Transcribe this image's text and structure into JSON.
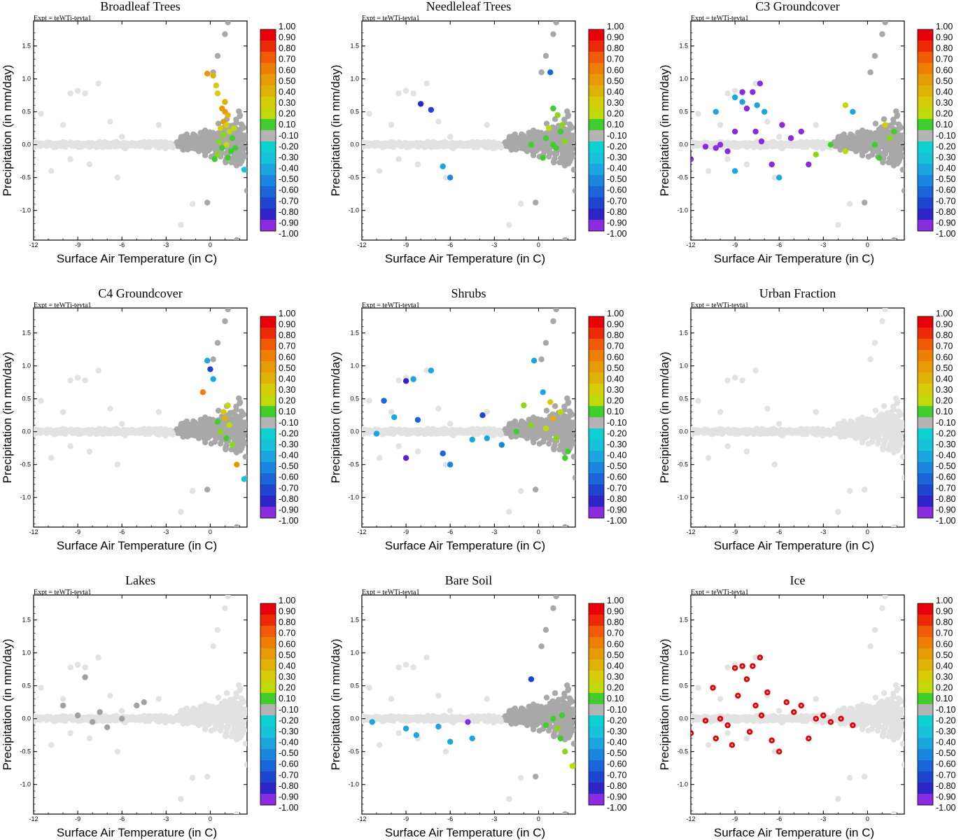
{
  "figure": {
    "expt_label": "Expt = teWTi-tevta1",
    "x_axis_label": "Surface Air Temperature (in C)",
    "y_axis_label": "Precipitation (in mm/day)",
    "x_ticks": [
      "-12",
      "-9",
      "-6",
      "-3",
      "0"
    ],
    "y_ticks": [
      "1.5",
      "1.0",
      "0.5",
      "0.0",
      "-0.5",
      "-1.0"
    ],
    "colorbar_labels": [
      "1.00",
      "0.90",
      "0.80",
      "0.70",
      "0.60",
      "0.50",
      "0.40",
      "0.30",
      "0.20",
      "0.10",
      "-0.10",
      "-0.20",
      "-0.30",
      "-0.40",
      "-0.50",
      "-0.60",
      "-0.70",
      "-0.80",
      "-0.90",
      "-1.00"
    ],
    "colorbar_colors": [
      "#e8000b",
      "#ec2a08",
      "#f05a05",
      "#ef7e04",
      "#e59a06",
      "#e0b208",
      "#d6cc08",
      "#bfd90a",
      "#88d81a",
      "#3fce2d",
      "#b4b4b4",
      "#0fd0d0",
      "#18c2da",
      "#1ba6e0",
      "#1987e0",
      "#1a66d8",
      "#1d45d0",
      "#2d25c8",
      "#5e1fd0",
      "#8a2be0"
    ]
  },
  "chart_data": [
    {
      "type": "scatter",
      "title": "Broadleaf Trees",
      "xlabel": "Surface Air Temperature (in C)",
      "ylabel": "Precipitation (in mm/day)",
      "xlim": [
        -12,
        2.5
      ],
      "ylim": [
        -1.45,
        1.88
      ],
      "highlight": [
        {
          "x": -0.2,
          "y": 1.08,
          "v": 0.6
        },
        {
          "x": 0.2,
          "y": 1.05,
          "v": 0.5
        },
        {
          "x": 0.4,
          "y": 0.9,
          "v": 0.45
        },
        {
          "x": 0.5,
          "y": 0.78,
          "v": 0.4
        },
        {
          "x": 0.8,
          "y": 0.55,
          "v": 0.6
        },
        {
          "x": 1.0,
          "y": 0.5,
          "v": 0.55
        },
        {
          "x": 1.2,
          "y": 0.45,
          "v": 0.5
        },
        {
          "x": 0.9,
          "y": 0.35,
          "v": 0.6
        },
        {
          "x": 1.1,
          "y": 0.3,
          "v": 0.45
        },
        {
          "x": 0.7,
          "y": 0.25,
          "v": 0.4
        },
        {
          "x": 1.3,
          "y": 0.2,
          "v": 0.3
        },
        {
          "x": 0.9,
          "y": 0.15,
          "v": 0.2
        },
        {
          "x": 1.5,
          "y": 0.1,
          "v": 0.15
        },
        {
          "x": 0.6,
          "y": 0.05,
          "v": 0.25
        },
        {
          "x": 1.1,
          "y": 0.0,
          "v": 0.3
        },
        {
          "x": 0.8,
          "y": -0.05,
          "v": 0.15
        },
        {
          "x": 1.4,
          "y": -0.1,
          "v": 0.1
        },
        {
          "x": 0.5,
          "y": -0.15,
          "v": 0.2
        },
        {
          "x": 1.2,
          "y": -0.2,
          "v": 0.1
        },
        {
          "x": 0.3,
          "y": -0.22,
          "v": 0.15
        },
        {
          "x": 1.6,
          "y": 0.25,
          "v": 0.35
        },
        {
          "x": 1.0,
          "y": 0.65,
          "v": 0.5
        },
        {
          "x": 1.7,
          "y": -0.05,
          "v": 0.12
        },
        {
          "x": 2.3,
          "y": -0.38,
          "v": -0.2
        }
      ]
    },
    {
      "type": "scatter",
      "title": "Needleleaf Trees",
      "xlabel": "Surface Air Temperature (in C)",
      "ylabel": "Precipitation (in mm/day)",
      "xlim": [
        -12,
        2.5
      ],
      "ylim": [
        -1.45,
        1.88
      ],
      "highlight": [
        {
          "x": -8.0,
          "y": 0.62,
          "v": -0.7
        },
        {
          "x": -7.3,
          "y": 0.53,
          "v": -0.6
        },
        {
          "x": -6.5,
          "y": -0.33,
          "v": -0.3
        },
        {
          "x": -6.0,
          "y": -0.5,
          "v": -0.4
        },
        {
          "x": 0.8,
          "y": 1.1,
          "v": -0.5
        },
        {
          "x": 1.0,
          "y": 0.55,
          "v": 0.15
        },
        {
          "x": 1.3,
          "y": 0.45,
          "v": 0.2
        },
        {
          "x": 1.5,
          "y": 0.2,
          "v": 0.15
        },
        {
          "x": 0.5,
          "y": 0.1,
          "v": 0.12
        },
        {
          "x": 1.8,
          "y": 0.05,
          "v": 0.2
        },
        {
          "x": 1.0,
          "y": 0.0,
          "v": 0.15
        },
        {
          "x": 1.2,
          "y": -0.05,
          "v": 0.12
        },
        {
          "x": 0.3,
          "y": -0.2,
          "v": 0.15
        },
        {
          "x": 1.6,
          "y": 0.3,
          "v": 0.2
        },
        {
          "x": -0.5,
          "y": 0.0,
          "v": 0.12
        },
        {
          "x": 0.7,
          "y": 0.25,
          "v": 0.3
        }
      ]
    },
    {
      "type": "scatter",
      "title": "C3 Groundcover",
      "xlabel": "Surface Air Temperature (in C)",
      "ylabel": "Precipitation (in mm/day)",
      "xlim": [
        -12,
        2.5
      ],
      "ylim": [
        -1.45,
        1.88
      ],
      "highlight": [
        {
          "x": -12,
          "y": -0.22,
          "v": -0.9
        },
        {
          "x": -11.0,
          "y": -0.03,
          "v": -0.9
        },
        {
          "x": -10.3,
          "y": -0.05,
          "v": -0.9
        },
        {
          "x": -10.0,
          "y": 0.0,
          "v": -0.9
        },
        {
          "x": -9.5,
          "y": -0.1,
          "v": -0.9
        },
        {
          "x": -9.0,
          "y": 0.2,
          "v": -0.9
        },
        {
          "x": -8.5,
          "y": 0.8,
          "v": -0.9
        },
        {
          "x": -7.8,
          "y": 0.8,
          "v": -0.9
        },
        {
          "x": -7.3,
          "y": 0.93,
          "v": -0.9
        },
        {
          "x": -8.2,
          "y": 0.55,
          "v": -0.9
        },
        {
          "x": -7.6,
          "y": 0.2,
          "v": -0.9
        },
        {
          "x": -7.2,
          "y": 0.05,
          "v": -0.9
        },
        {
          "x": -6.5,
          "y": -0.3,
          "v": -0.9
        },
        {
          "x": -5.8,
          "y": 0.3,
          "v": -0.9
        },
        {
          "x": -5.2,
          "y": 0.1,
          "v": -0.9
        },
        {
          "x": -4.5,
          "y": 0.2,
          "v": -0.9
        },
        {
          "x": -4.0,
          "y": -0.3,
          "v": -0.9
        },
        {
          "x": -10.3,
          "y": 0.5,
          "v": -0.3
        },
        {
          "x": -9.0,
          "y": 0.72,
          "v": -0.3
        },
        {
          "x": -8.5,
          "y": 0.65,
          "v": -0.3
        },
        {
          "x": -7.5,
          "y": 0.6,
          "v": -0.3
        },
        {
          "x": -7.0,
          "y": 0.5,
          "v": -0.3
        },
        {
          "x": -9.0,
          "y": -0.4,
          "v": -0.3
        },
        {
          "x": -6.0,
          "y": -0.5,
          "v": -0.3
        },
        {
          "x": -1.5,
          "y": 0.6,
          "v": 0.3
        },
        {
          "x": -3.5,
          "y": -0.15,
          "v": 0.2
        },
        {
          "x": -2.5,
          "y": 0.0,
          "v": 0.15
        },
        {
          "x": -1.5,
          "y": -0.1,
          "v": 0.3
        },
        {
          "x": 0.5,
          "y": 0.0,
          "v": 0.15
        },
        {
          "x": 0.8,
          "y": -0.2,
          "v": 0.1
        },
        {
          "x": 1.2,
          "y": 0.3,
          "v": 0.4
        },
        {
          "x": 1.5,
          "y": 0.1,
          "v": 0.2
        },
        {
          "x": 1.8,
          "y": 0.2,
          "v": 0.15
        },
        {
          "x": -1.0,
          "y": 0.5,
          "v": -0.25
        }
      ]
    },
    {
      "type": "scatter",
      "title": "C4 Groundcover",
      "xlabel": "Surface Air Temperature (in C)",
      "ylabel": "Precipitation (in mm/day)",
      "xlim": [
        -12,
        2.5
      ],
      "ylim": [
        -1.45,
        1.88
      ],
      "highlight": [
        {
          "x": -0.2,
          "y": 1.08,
          "v": -0.3
        },
        {
          "x": 0.0,
          "y": 0.95,
          "v": -0.6
        },
        {
          "x": 0.2,
          "y": 0.8,
          "v": -0.3
        },
        {
          "x": -0.5,
          "y": 0.6,
          "v": 0.7
        },
        {
          "x": 0.9,
          "y": 0.3,
          "v": 0.4
        },
        {
          "x": 1.0,
          "y": 0.2,
          "v": 0.5
        },
        {
          "x": 1.3,
          "y": 0.1,
          "v": 0.3
        },
        {
          "x": 0.7,
          "y": 0.0,
          "v": 0.2
        },
        {
          "x": 1.1,
          "y": -0.1,
          "v": 0.15
        },
        {
          "x": 1.5,
          "y": -0.2,
          "v": 0.2
        },
        {
          "x": 0.5,
          "y": 0.15,
          "v": 0.12
        },
        {
          "x": 1.8,
          "y": -0.5,
          "v": 0.6
        },
        {
          "x": 2.3,
          "y": -0.72,
          "v": -0.2
        },
        {
          "x": 1.2,
          "y": 0.4,
          "v": 0.3
        }
      ]
    },
    {
      "type": "scatter",
      "title": "Shrubs",
      "xlabel": "Surface Air Temperature (in C)",
      "ylabel": "Precipitation (in mm/day)",
      "xlim": [
        -12,
        2.5
      ],
      "ylim": [
        -1.45,
        1.88
      ],
      "highlight": [
        {
          "x": -10.5,
          "y": 0.47,
          "v": -0.5
        },
        {
          "x": -9.0,
          "y": 0.77,
          "v": -0.7
        },
        {
          "x": -8.5,
          "y": 0.8,
          "v": -0.3
        },
        {
          "x": -7.3,
          "y": 0.93,
          "v": -0.3
        },
        {
          "x": -8.2,
          "y": 0.18,
          "v": -0.5
        },
        {
          "x": -9.0,
          "y": -0.4,
          "v": -0.8
        },
        {
          "x": -6.5,
          "y": -0.33,
          "v": -0.5
        },
        {
          "x": -6.0,
          "y": -0.5,
          "v": -0.4
        },
        {
          "x": -3.8,
          "y": 0.25,
          "v": -0.6
        },
        {
          "x": -4.5,
          "y": -0.12,
          "v": -0.3
        },
        {
          "x": -3.5,
          "y": -0.1,
          "v": -0.3
        },
        {
          "x": -2.5,
          "y": -0.2,
          "v": -0.4
        },
        {
          "x": -1.5,
          "y": 0.0,
          "v": 0.15
        },
        {
          "x": -0.5,
          "y": 0.1,
          "v": 0.2
        },
        {
          "x": 0.5,
          "y": 0.05,
          "v": 0.3
        },
        {
          "x": 1.0,
          "y": 0.2,
          "v": 0.5
        },
        {
          "x": 0.8,
          "y": 0.45,
          "v": 0.4
        },
        {
          "x": 1.2,
          "y": -0.1,
          "v": 0.2
        },
        {
          "x": 1.5,
          "y": 0.3,
          "v": 0.3
        },
        {
          "x": -1.0,
          "y": 0.4,
          "v": 0.25
        },
        {
          "x": 0.3,
          "y": 0.6,
          "v": -0.3
        },
        {
          "x": -0.3,
          "y": 1.08,
          "v": -0.3
        },
        {
          "x": 1.8,
          "y": -0.4,
          "v": 0.15
        },
        {
          "x": 2.0,
          "y": -0.3,
          "v": 0.12
        },
        {
          "x": -9.8,
          "y": 0.22,
          "v": -0.3
        },
        {
          "x": -11,
          "y": -0.03,
          "v": -0.3
        }
      ]
    },
    {
      "type": "scatter",
      "title": "Urban Fraction",
      "xlabel": "Surface Air Temperature (in C)",
      "ylabel": "Precipitation (in mm/day)",
      "xlim": [
        -12,
        2.5
      ],
      "ylim": [
        -1.45,
        1.88
      ],
      "highlight": []
    },
    {
      "type": "scatter",
      "title": "Lakes",
      "xlabel": "Surface Air Temperature (in C)",
      "ylabel": "Precipitation (in mm/day)",
      "xlim": [
        -12,
        2.5
      ],
      "ylim": [
        -1.45,
        1.88
      ],
      "highlight": [
        {
          "x": -10,
          "y": 0.2,
          "v": 0.0
        },
        {
          "x": -8.5,
          "y": 0.63,
          "v": 0.0
        },
        {
          "x": -7.5,
          "y": 0.1,
          "v": 0.0
        },
        {
          "x": -7.0,
          "y": -0.13,
          "v": 0.0
        },
        {
          "x": -6.0,
          "y": 0.0,
          "v": 0.0
        },
        {
          "x": -4.5,
          "y": 0.25,
          "v": 0.0
        },
        {
          "x": -8.0,
          "y": -0.05,
          "v": 0.0
        },
        {
          "x": -9.0,
          "y": 0.05,
          "v": 0.0
        },
        {
          "x": -5.0,
          "y": 0.2,
          "v": 0.0
        }
      ]
    },
    {
      "type": "scatter",
      "title": "Bare Soil",
      "xlabel": "Surface Air Temperature (in C)",
      "ylabel": "Precipitation (in mm/day)",
      "xlim": [
        -12,
        2.5
      ],
      "ylim": [
        -1.45,
        1.88
      ],
      "highlight": [
        {
          "x": -11.3,
          "y": -0.05,
          "v": -0.3
        },
        {
          "x": -9.0,
          "y": -0.15,
          "v": -0.3
        },
        {
          "x": -8.3,
          "y": -0.25,
          "v": -0.3
        },
        {
          "x": -6.8,
          "y": -0.12,
          "v": -0.3
        },
        {
          "x": -6.0,
          "y": -0.35,
          "v": -0.3
        },
        {
          "x": -4.8,
          "y": -0.05,
          "v": -0.9
        },
        {
          "x": -4.5,
          "y": -0.3,
          "v": -0.3
        },
        {
          "x": -0.5,
          "y": 0.6,
          "v": -0.6
        },
        {
          "x": 1.0,
          "y": 0.0,
          "v": 0.15
        },
        {
          "x": 1.3,
          "y": -0.15,
          "v": 0.2
        },
        {
          "x": 1.5,
          "y": -0.3,
          "v": 0.15
        },
        {
          "x": 1.8,
          "y": -0.5,
          "v": 0.2
        },
        {
          "x": 2.3,
          "y": -0.72,
          "v": 0.3
        },
        {
          "x": 0.5,
          "y": -0.1,
          "v": 0.12
        },
        {
          "x": 1.6,
          "y": 0.05,
          "v": 0.15
        }
      ]
    },
    {
      "type": "scatter",
      "title": "Ice",
      "xlabel": "Surface Air Temperature (in C)",
      "ylabel": "Precipitation (in mm/day)",
      "xlim": [
        -12,
        2.5
      ],
      "ylim": [
        -1.45,
        1.88
      ],
      "highlight": [
        {
          "x": -12,
          "y": -0.22,
          "v": 1.0
        },
        {
          "x": -11.0,
          "y": -0.03,
          "v": 1.0
        },
        {
          "x": -10.5,
          "y": 0.47,
          "v": 1.0
        },
        {
          "x": -10.3,
          "y": -0.3,
          "v": 1.0
        },
        {
          "x": -10.0,
          "y": 0.0,
          "v": 1.0
        },
        {
          "x": -9.5,
          "y": -0.1,
          "v": 1.0
        },
        {
          "x": -9.0,
          "y": 0.77,
          "v": 1.0
        },
        {
          "x": -8.5,
          "y": 0.8,
          "v": 1.0
        },
        {
          "x": -8.2,
          "y": 0.6,
          "v": 1.0
        },
        {
          "x": -7.8,
          "y": 0.8,
          "v": 1.0
        },
        {
          "x": -7.3,
          "y": 0.93,
          "v": 1.0
        },
        {
          "x": -7.6,
          "y": 0.2,
          "v": 1.0
        },
        {
          "x": -7.2,
          "y": 0.05,
          "v": 1.0
        },
        {
          "x": -6.5,
          "y": -0.33,
          "v": 1.0
        },
        {
          "x": -6.0,
          "y": -0.5,
          "v": 1.0
        },
        {
          "x": -5.5,
          "y": 0.25,
          "v": 1.0
        },
        {
          "x": -5.0,
          "y": 0.1,
          "v": 1.0
        },
        {
          "x": -4.5,
          "y": 0.2,
          "v": 1.0
        },
        {
          "x": -4.0,
          "y": -0.3,
          "v": 1.0
        },
        {
          "x": -3.5,
          "y": 0.0,
          "v": 1.0
        },
        {
          "x": -3.0,
          "y": 0.05,
          "v": 1.0
        },
        {
          "x": -2.5,
          "y": -0.05,
          "v": 1.0
        },
        {
          "x": -1.8,
          "y": 0.0,
          "v": 1.0
        },
        {
          "x": -1.0,
          "y": -0.1,
          "v": 1.0
        },
        {
          "x": -9.2,
          "y": -0.4,
          "v": 1.0
        },
        {
          "x": -8.8,
          "y": 0.35,
          "v": 1.0
        },
        {
          "x": -8.0,
          "y": -0.2,
          "v": 1.0
        },
        {
          "x": -6.8,
          "y": 0.4,
          "v": 1.0
        }
      ]
    }
  ]
}
